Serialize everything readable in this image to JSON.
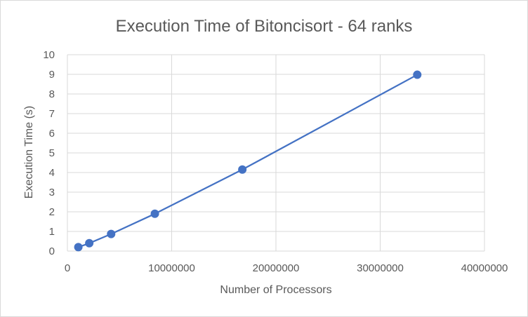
{
  "chart_data": {
    "type": "scatter",
    "title": "Execution Time of Bitoncisort - 64 ranks",
    "xlabel": "Number of Processors",
    "ylabel": "Execution Time (s)",
    "xlim": [
      0,
      40000000
    ],
    "ylim": [
      0,
      10
    ],
    "x_ticks": [
      "0",
      "10000000",
      "20000000",
      "30000000",
      "40000000"
    ],
    "y_ticks": [
      "0",
      "1",
      "2",
      "3",
      "4",
      "5",
      "6",
      "7",
      "8",
      "9",
      "10"
    ],
    "grid": true,
    "legend": "none",
    "series": [
      {
        "color": "#4472c4",
        "x": [
          1048576,
          2097152,
          4194304,
          8388608,
          16777216,
          33554432
        ],
        "y": [
          0.2,
          0.4,
          0.87,
          1.9,
          4.15,
          8.98
        ]
      }
    ]
  }
}
